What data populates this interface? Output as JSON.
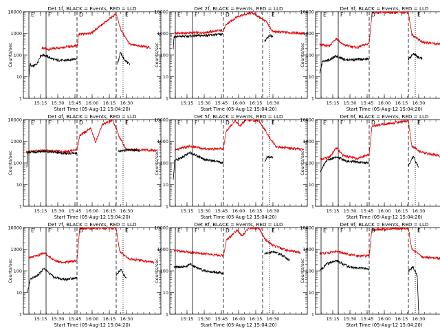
{
  "chart_data": [
    {
      "type": "line",
      "title": "Det 1f, BLACK = Events, RED = LLD",
      "ylabel": "Counts/sec",
      "xlabel": "Start Time (05-Aug-12 15:04:20)",
      "x_ticks": [
        "15:15",
        "15:30",
        "15:45",
        "16:00",
        "16:15",
        "16:30"
      ],
      "y_ticks": [
        "1",
        "10",
        "100",
        "1000",
        "10000"
      ],
      "ylim": [
        1,
        10000
      ],
      "yscale": "log",
      "markers": [
        "E",
        "F",
        "D",
        "E"
      ],
      "series": [
        {
          "name": "LLD",
          "color": "#e00000",
          "knots": [
            [
              15.27,
              220
            ],
            [
              15.35,
              180
            ],
            [
              15.55,
              230
            ],
            [
              15.75,
              260
            ],
            [
              15.79,
              290
            ],
            [
              15.8,
              900
            ],
            [
              15.98,
              1000
            ],
            [
              16.35,
              8000
            ],
            [
              16.42,
              1400
            ],
            [
              16.55,
              300
            ],
            [
              16.85,
              220
            ]
          ]
        },
        {
          "name": "Events",
          "color": "#000000",
          "knots": [
            [
              15.08,
              10
            ],
            [
              15.1,
              40
            ],
            [
              15.12,
              28
            ],
            [
              15.2,
              40
            ],
            [
              15.25,
              95
            ],
            [
              15.3,
              100
            ],
            [
              15.45,
              60
            ],
            [
              15.6,
              55
            ],
            [
              15.78,
              70
            ]
          ],
          "knots2": [
            [
              16.37,
              40
            ],
            [
              16.41,
              130
            ],
            [
              16.47,
              60
            ],
            [
              16.55,
              35
            ]
          ]
        }
      ]
    },
    {
      "type": "line",
      "title": "Det 2f, BLACK = Events, RED = LLD",
      "ylabel": "Counts/sec",
      "xlabel": "Start Time (05-Aug-12 15:04:20)",
      "x_ticks": [
        "15:15",
        "15:30",
        "15:45",
        "16:00",
        "16:15",
        "16:30"
      ],
      "y_ticks": [
        "1",
        "10",
        "100",
        "1000",
        "10000"
      ],
      "ylim": [
        1,
        10000
      ],
      "yscale": "log",
      "markers": [
        "E",
        "F",
        "D",
        "E"
      ],
      "series": [
        {
          "name": "LLD",
          "color": "#e00000",
          "knots": [
            [
              15.07,
              1000
            ],
            [
              15.5,
              1100
            ],
            [
              15.78,
              1400
            ],
            [
              15.82,
              2500
            ],
            [
              15.98,
              6000
            ],
            [
              16.2,
              9000
            ],
            [
              16.4,
              3500
            ],
            [
              16.5,
              1200
            ],
            [
              16.95,
              1000
            ]
          ]
        },
        {
          "name": "Events",
          "color": "#000000",
          "knots": [
            [
              15.05,
              200
            ],
            [
              15.06,
              700
            ],
            [
              15.5,
              800
            ],
            [
              15.77,
              900
            ]
          ],
          "knots2": [
            [
              16.38,
              450
            ],
            [
              16.45,
              800
            ],
            [
              16.5,
              700
            ]
          ]
        }
      ]
    },
    {
      "type": "line",
      "title": "Det 3f, BLACK = Events, RED = LLD",
      "ylabel": "Counts/sec",
      "xlabel": "Start Time (05-Aug-12 15:04:20)",
      "x_ticks": [
        "15:15",
        "15:30",
        "15:45",
        "16:00",
        "16:15",
        "16:30"
      ],
      "y_ticks": [
        "1",
        "10",
        "100",
        "1000",
        "10000"
      ],
      "ylim": [
        1,
        10000
      ],
      "yscale": "log",
      "markers": [
        "E",
        "F",
        "D",
        "E"
      ],
      "series": [
        {
          "name": "LLD",
          "color": "#e00000",
          "knots": [
            [
              15.06,
              300
            ],
            [
              15.2,
              260
            ],
            [
              15.3,
              600
            ],
            [
              15.4,
              300
            ],
            [
              15.6,
              220
            ],
            [
              15.78,
              350
            ],
            [
              15.82,
              9000
            ],
            [
              16.35,
              9500
            ],
            [
              16.4,
              900
            ],
            [
              16.55,
              400
            ],
            [
              16.85,
              300
            ]
          ]
        },
        {
          "name": "Events",
          "color": "#000000",
          "knots": [
            [
              15.06,
              15
            ],
            [
              15.1,
              50
            ],
            [
              15.2,
              60
            ],
            [
              15.3,
              90
            ],
            [
              15.45,
              60
            ],
            [
              15.78,
              65
            ]
          ],
          "knots2": [
            [
              16.35,
              60
            ],
            [
              16.42,
              120
            ],
            [
              16.5,
              80
            ],
            [
              16.55,
              70
            ]
          ]
        }
      ]
    },
    {
      "type": "line",
      "title": "Det 4f, BLACK = Events, RED = LLD",
      "ylabel": "Counts/sec",
      "xlabel": "Start Time (05-Aug-12 15:04:20)",
      "x_ticks": [
        "15:15",
        "15:30",
        "15:45",
        "16:00",
        "16:15",
        "16:30"
      ],
      "y_ticks": [
        "1",
        "10",
        "100",
        "1000",
        "10000"
      ],
      "ylim": [
        1,
        10000
      ],
      "yscale": "log",
      "markers": [
        "E",
        "F",
        "D",
        "E"
      ],
      "series": [
        {
          "name": "LLD",
          "color": "#e00000",
          "knots": [
            [
              15.04,
              320
            ],
            [
              15.3,
              380
            ],
            [
              15.6,
              330
            ],
            [
              15.78,
              420
            ],
            [
              15.82,
              1800
            ],
            [
              15.98,
              4000
            ],
            [
              16.05,
              900
            ],
            [
              16.15,
              6000
            ],
            [
              16.3,
              9500
            ],
            [
              16.4,
              1500
            ],
            [
              16.5,
              420
            ],
            [
              16.95,
              380
            ]
          ]
        },
        {
          "name": "Events",
          "color": "#000000",
          "knots": [
            [
              15.05,
              60
            ],
            [
              15.06,
              300
            ],
            [
              15.3,
              350
            ],
            [
              15.6,
              280
            ],
            [
              15.78,
              280
            ]
          ],
          "knots2": [
            [
              16.38,
              350
            ],
            [
              16.5,
              400
            ],
            [
              16.7,
              380
            ]
          ]
        }
      ]
    },
    {
      "type": "line",
      "title": "Det 5f, BLACK = Events, RED = LLD",
      "ylabel": "Counts/sec",
      "xlabel": "Start Time (05-Aug-12 15:04:20)",
      "x_ticks": [
        "15:15",
        "15:30",
        "15:45",
        "16:00",
        "16:15",
        "16:30"
      ],
      "y_ticks": [
        "1",
        "10",
        "100",
        "1000",
        "10000"
      ],
      "ylim": [
        1,
        10000
      ],
      "yscale": "log",
      "markers": [
        "E",
        "F",
        "D",
        "E"
      ],
      "series": [
        {
          "name": "LLD",
          "color": "#e00000",
          "knots": [
            [
              15.07,
              400
            ],
            [
              15.3,
              600
            ],
            [
              15.5,
              450
            ],
            [
              15.78,
              450
            ],
            [
              15.82,
              3000
            ],
            [
              15.95,
              9000
            ],
            [
              16.02,
              5000
            ],
            [
              16.1,
              9500
            ],
            [
              16.3,
              9000
            ],
            [
              16.45,
              1500
            ],
            [
              16.55,
              550
            ],
            [
              16.95,
              420
            ]
          ]
        },
        {
          "name": "Events",
          "color": "#000000",
          "knots": [
            [
              15.05,
              15
            ],
            [
              15.07,
              120
            ],
            [
              15.3,
              300
            ],
            [
              15.5,
              150
            ],
            [
              15.78,
              100
            ]
          ],
          "knots2": [
            [
              16.38,
              100
            ],
            [
              16.42,
              200
            ],
            [
              16.5,
              180
            ]
          ]
        }
      ]
    },
    {
      "type": "line",
      "title": "Det 6f, BLACK = Events, RED = LLD",
      "ylabel": "Counts/sec",
      "xlabel": "Start Time (05-Aug-12 15:04:20)",
      "x_ticks": [
        "15:15",
        "15:30",
        "15:45",
        "16:00",
        "16:15",
        "16:30"
      ],
      "y_ticks": [
        "1",
        "10",
        "100",
        "1000",
        "10000"
      ],
      "ylim": [
        1,
        10000
      ],
      "yscale": "log",
      "markers": [
        "E",
        "F",
        "D",
        "E"
      ],
      "series": [
        {
          "name": "LLD",
          "color": "#e00000",
          "knots": [
            [
              15.07,
              150
            ],
            [
              15.2,
              180
            ],
            [
              15.3,
              500
            ],
            [
              15.4,
              220
            ],
            [
              15.6,
              160
            ],
            [
              15.78,
              250
            ],
            [
              15.82,
              5000
            ],
            [
              16.35,
              9000
            ],
            [
              16.4,
              600
            ],
            [
              16.55,
              300
            ],
            [
              16.85,
              200
            ]
          ]
        },
        {
          "name": "Events",
          "color": "#000000",
          "knots": [
            [
              15.07,
              40
            ],
            [
              15.15,
              120
            ],
            [
              15.3,
              200
            ],
            [
              15.45,
              120
            ],
            [
              15.78,
              100
            ]
          ],
          "knots2": [
            [
              16.35,
              80
            ],
            [
              16.42,
              200
            ],
            [
              16.5,
              60
            ]
          ]
        }
      ]
    },
    {
      "type": "line",
      "title": "Det 7f, BLACK = Events, RED = LLD",
      "ylabel": "Counts/sec",
      "xlabel": "Start Time (05-Aug-12 15:04:20)",
      "x_ticks": [
        "15:15",
        "15:30",
        "15:45",
        "16:00",
        "16:15",
        "16:30"
      ],
      "y_ticks": [
        "1",
        "10",
        "100",
        "1000",
        "10000"
      ],
      "ylim": [
        1,
        10000
      ],
      "yscale": "log",
      "markers": [
        "E",
        "F",
        "D",
        "E"
      ],
      "series": [
        {
          "name": "LLD",
          "color": "#e00000",
          "knots": [
            [
              15.08,
              400
            ],
            [
              15.2,
              500
            ],
            [
              15.3,
              700
            ],
            [
              15.45,
              300
            ],
            [
              15.6,
              250
            ],
            [
              15.78,
              300
            ],
            [
              15.82,
              9000
            ],
            [
              16.35,
              9500
            ],
            [
              16.4,
              800
            ],
            [
              16.55,
              350
            ],
            [
              16.9,
              250
            ]
          ]
        },
        {
          "name": "Events",
          "color": "#000000",
          "knots": [
            [
              15.06,
              10
            ],
            [
              15.1,
              40
            ],
            [
              15.2,
              60
            ],
            [
              15.3,
              130
            ],
            [
              15.45,
              50
            ],
            [
              15.6,
              40
            ],
            [
              15.78,
              50
            ]
          ],
          "knots2": [
            [
              16.35,
              60
            ],
            [
              16.42,
              120
            ],
            [
              16.5,
              40
            ]
          ]
        }
      ]
    },
    {
      "type": "line",
      "title": "Det 8f, BLACK = Events, RED = LLD",
      "ylabel": "Counts/sec",
      "xlabel": "Start Time (05-Aug-12 15:04:20)",
      "x_ticks": [
        "15:15",
        "15:30",
        "15:45",
        "16:00",
        "16:15",
        "16:30"
      ],
      "y_ticks": [
        "1",
        "10",
        "100",
        "1000",
        "10000"
      ],
      "ylim": [
        1,
        10000
      ],
      "yscale": "log",
      "markers": [
        "E",
        "F",
        "D",
        "E"
      ],
      "series": [
        {
          "name": "LLD",
          "color": "#e00000",
          "knots": [
            [
              15.06,
              900
            ],
            [
              15.3,
              700
            ],
            [
              15.55,
              600
            ],
            [
              15.78,
              500
            ],
            [
              15.82,
              2500
            ],
            [
              15.98,
              8000
            ],
            [
              16.05,
              4000
            ],
            [
              16.15,
              9500
            ],
            [
              16.3,
              9000
            ],
            [
              16.38,
              3000
            ],
            [
              16.5,
              1500
            ],
            [
              16.7,
              900
            ],
            [
              16.9,
              700
            ]
          ]
        },
        {
          "name": "Events",
          "color": "#000000",
          "knots": [
            [
              15.06,
              150
            ],
            [
              15.2,
              150
            ],
            [
              15.3,
              200
            ],
            [
              15.5,
              100
            ],
            [
              15.78,
              80
            ]
          ],
          "knots2": [
            [
              16.38,
              600
            ],
            [
              16.5,
              800
            ],
            [
              16.65,
              500
            ],
            [
              16.75,
              300
            ]
          ]
        }
      ]
    },
    {
      "type": "line",
      "title": "Det 9f, BLACK = Events, RED = LLD",
      "ylabel": "Counts/sec",
      "xlabel": "Start Time (05-Aug-12 15:04:20)",
      "x_ticks": [
        "15:15",
        "15:30",
        "15:45",
        "16:00",
        "16:15",
        "16:30"
      ],
      "y_ticks": [
        "1",
        "10",
        "100",
        "1000",
        "10000"
      ],
      "ylim": [
        1,
        10000
      ],
      "yscale": "log",
      "markers": [
        "E",
        "F",
        "D",
        "E"
      ],
      "series": [
        {
          "name": "LLD",
          "color": "#e00000",
          "knots": [
            [
              15.06,
              600
            ],
            [
              15.2,
              700
            ],
            [
              15.3,
              800
            ],
            [
              15.45,
              600
            ],
            [
              15.6,
              500
            ],
            [
              15.78,
              500
            ],
            [
              15.82,
              8000
            ],
            [
              16.35,
              9500
            ],
            [
              16.4,
              1000
            ],
            [
              16.55,
              450
            ],
            [
              16.9,
              350
            ]
          ]
        },
        {
          "name": "Events",
          "color": "#000000",
          "knots": [
            [
              15.06,
              100
            ],
            [
              15.15,
              200
            ],
            [
              15.3,
              300
            ],
            [
              15.5,
              150
            ],
            [
              15.78,
              120
            ]
          ],
          "knots2": [
            [
              16.35,
              100
            ],
            [
              16.42,
              150
            ],
            [
              16.48,
              60
            ],
            [
              16.5,
              1
            ]
          ]
        }
      ]
    }
  ]
}
